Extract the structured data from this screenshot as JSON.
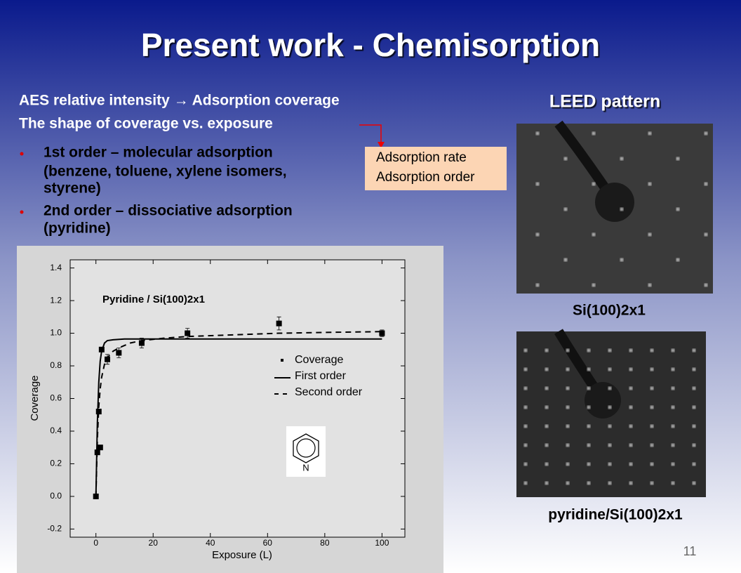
{
  "title": "Present work - Chemisorption",
  "intro": [
    "AES relative intensity → Adsorption coverage",
    "The shape of coverage vs. exposure"
  ],
  "bullets": [
    [
      "1st order – molecular adsorption",
      "(benzene, toluene, xylene isomers,",
      "styrene)"
    ],
    [
      "2nd order – dissociative adsorption",
      "(pyridine)"
    ]
  ],
  "callout": [
    "Adsorption rate",
    "Adsorption order"
  ],
  "leed": {
    "heading": "LEED pattern",
    "captions": [
      "Si(100)2x1",
      "pyridine/Si(100)2x1"
    ]
  },
  "page_number": "11",
  "chart_data": {
    "type": "scatter",
    "annotation": "Pyridine / Si(100)2x1",
    "molecule_label": "N",
    "xlabel": "Exposure (L)",
    "ylabel": "Coverage",
    "xlim": [
      -9,
      108
    ],
    "ylim": [
      -0.25,
      1.45
    ],
    "xticks": [
      0,
      20,
      40,
      60,
      80,
      100
    ],
    "yticks": [
      -0.2,
      {
        "value": 0,
        "label": "0.0"
      },
      0.2,
      0.4,
      0.6,
      0.8,
      {
        "value": 1,
        "label": "1.0"
      },
      1.2,
      1.4
    ],
    "series": [
      {
        "name": "Coverage",
        "mode": "markers",
        "color": "#000000",
        "x": [
          0,
          0.5,
          1,
          1.5,
          2,
          4,
          8,
          16,
          32,
          64,
          100
        ],
        "values": [
          0.0,
          0.27,
          0.52,
          0.3,
          0.9,
          0.84,
          0.88,
          0.94,
          1.0,
          1.06,
          1.0
        ],
        "errors": [
          0.01,
          0.01,
          0.01,
          0.01,
          0.01,
          0.03,
          0.03,
          0.03,
          0.03,
          0.04,
          0.02
        ]
      },
      {
        "name": "First order",
        "mode": "line",
        "dash": false,
        "color": "#000000",
        "x": [
          0,
          0.5,
          1,
          1.5,
          2,
          3,
          4,
          6,
          10,
          20,
          40,
          60,
          80,
          100
        ],
        "values": [
          0,
          0.45,
          0.7,
          0.83,
          0.89,
          0.94,
          0.955,
          0.96,
          0.965,
          0.965,
          0.965,
          0.965,
          0.965,
          0.965
        ]
      },
      {
        "name": "Second order",
        "mode": "line",
        "dash": true,
        "color": "#000000",
        "x": [
          0,
          0.5,
          1,
          1.5,
          2,
          3,
          4,
          6,
          8,
          12,
          16,
          24,
          32,
          48,
          64,
          80,
          100
        ],
        "values": [
          0,
          0.35,
          0.55,
          0.66,
          0.73,
          0.81,
          0.85,
          0.89,
          0.91,
          0.94,
          0.955,
          0.97,
          0.98,
          0.99,
          1.0,
          1.005,
          1.01
        ]
      }
    ]
  }
}
